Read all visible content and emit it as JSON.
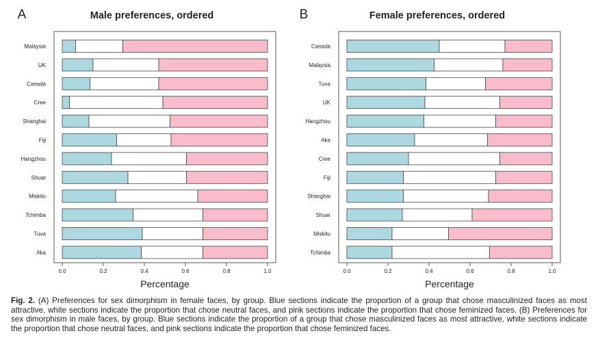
{
  "colors": {
    "masculinized": "#add8e0",
    "neutral": "#ffffff",
    "feminized": "#f8bccb",
    "stroke": "#444444"
  },
  "chart_data": [
    {
      "type": "bar",
      "stacked": true,
      "orientation": "horizontal",
      "panel_label": "A",
      "title": "Male preferences, ordered",
      "xlabel": "Percentage",
      "xlim": [
        0,
        1
      ],
      "xticks": [
        "0.0",
        "0.2",
        "0.4",
        "0.6",
        "0.8",
        "1.0"
      ],
      "categories": [
        "Malaysia",
        "UK",
        "Canada",
        "Cree",
        "Shanghai",
        "Fiji",
        "Hangzhou",
        "Shuar",
        "Miskitu",
        "Tchimba",
        "Tuva",
        "Aka"
      ],
      "series": [
        {
          "key": "masculinized",
          "values": [
            0.065,
            0.15,
            0.135,
            0.035,
            0.13,
            0.265,
            0.24,
            0.32,
            0.26,
            0.345,
            0.39,
            0.385
          ]
        },
        {
          "key": "neutral",
          "values": [
            0.23,
            0.32,
            0.335,
            0.455,
            0.395,
            0.265,
            0.365,
            0.285,
            0.4,
            0.34,
            0.295,
            0.3
          ]
        },
        {
          "key": "feminized",
          "values": [
            0.705,
            0.53,
            0.53,
            0.51,
            0.475,
            0.47,
            0.395,
            0.395,
            0.34,
            0.315,
            0.315,
            0.315
          ]
        }
      ]
    },
    {
      "type": "bar",
      "stacked": true,
      "orientation": "horizontal",
      "panel_label": "B",
      "title": "Female preferences, ordered",
      "xlabel": "Percentage",
      "xlim": [
        0,
        1
      ],
      "xticks": [
        "0.0",
        "0.2",
        "0.4",
        "0.6",
        "0.8",
        "1.0"
      ],
      "categories": [
        "Canada",
        "Malaysia",
        "Tuva",
        "UK",
        "Hangzhou",
        "Aka",
        "Cree",
        "Fiji",
        "Shanghai",
        "Shuar",
        "Miskitu",
        "Tchimba"
      ],
      "series": [
        {
          "key": "masculinized",
          "values": [
            0.45,
            0.425,
            0.385,
            0.38,
            0.375,
            0.33,
            0.3,
            0.275,
            0.275,
            0.27,
            0.22,
            0.22
          ]
        },
        {
          "key": "neutral",
          "values": [
            0.32,
            0.335,
            0.29,
            0.365,
            0.35,
            0.355,
            0.445,
            0.45,
            0.415,
            0.34,
            0.275,
            0.475
          ]
        },
        {
          "key": "feminized",
          "values": [
            0.23,
            0.24,
            0.325,
            0.255,
            0.275,
            0.315,
            0.255,
            0.275,
            0.31,
            0.39,
            0.505,
            0.305
          ]
        }
      ]
    }
  ],
  "caption": {
    "label": "Fig. 2.",
    "text": "(A) Preferences for sex dimorphism in female faces, by group. Blue sections indicate the proportion of a group that chose masculinized faces as most attractive, white sections indicate the proportion that chose neutral faces, and pink sections indicate the proportion that chose feminized faces. (B) Preferences for sex dimorphism in male faces, by group. Blue sections indicate the proportion of a group that chose masculinized faces as most attractive, white sections indicate the proportion that chose neutral faces, and pink sections indicate the proportion that chose feminized faces."
  }
}
